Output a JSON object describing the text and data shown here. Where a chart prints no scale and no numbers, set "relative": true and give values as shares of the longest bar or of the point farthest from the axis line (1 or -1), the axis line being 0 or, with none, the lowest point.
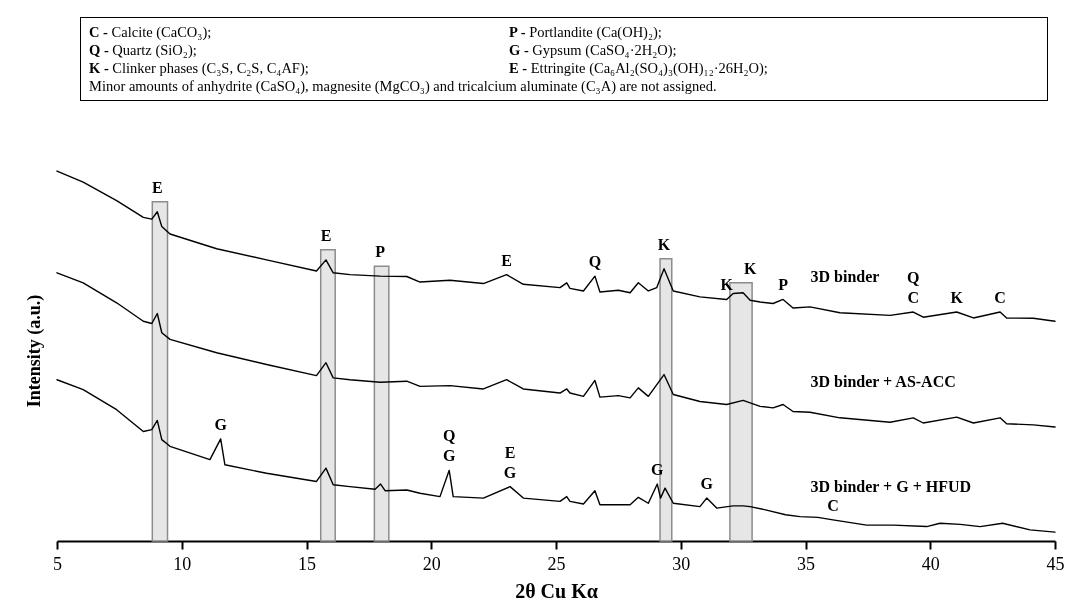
{
  "chart_data": {
    "type": "line",
    "relative": true,
    "xlabel": "2θ Cu Kα",
    "ylabel": "Intensity (a.u.)",
    "xlim": [
      5,
      45
    ],
    "xticks": [
      5,
      10,
      15,
      20,
      25,
      30,
      35,
      40,
      45
    ],
    "series": [
      {
        "name": "3D binder",
        "color": "#000000",
        "x": [
          5,
          6.05,
          7.39,
          8.46,
          8.8,
          9.02,
          9.2,
          9.53,
          11.4,
          13.4,
          15.4,
          15.78,
          16.07,
          16.74,
          17.95,
          19.02,
          19.55,
          20.75,
          22.09,
          23.02,
          23.69,
          25.16,
          25.43,
          25.56,
          26.1,
          26.56,
          26.76,
          27.5,
          27.97,
          28.3,
          28.7,
          29.04,
          29.33,
          29.7,
          30.77,
          31.84,
          32.1,
          32.5,
          32.78,
          33.18,
          33.7,
          34.1,
          34.5,
          35.18,
          36.38,
          38.39,
          39.32,
          39.72,
          41.06,
          41.73,
          42.8,
          43.06,
          44.13,
          45
        ],
        "values": [
          1.0,
          0.97,
          0.92,
          0.875,
          0.87,
          0.89,
          0.85,
          0.83,
          0.79,
          0.76,
          0.73,
          0.76,
          0.725,
          0.72,
          0.716,
          0.715,
          0.7,
          0.705,
          0.696,
          0.72,
          0.694,
          0.685,
          0.698,
          0.683,
          0.676,
          0.716,
          0.673,
          0.678,
          0.671,
          0.698,
          0.676,
          0.685,
          0.736,
          0.676,
          0.66,
          0.653,
          0.669,
          0.671,
          0.651,
          0.646,
          0.642,
          0.653,
          0.63,
          0.633,
          0.617,
          0.61,
          0.619,
          0.605,
          0.619,
          0.603,
          0.619,
          0.603,
          0.602,
          0.594
        ]
      },
      {
        "name": "3D binder + AS-ACC",
        "color": "#000000",
        "x": [
          5,
          6.05,
          7.39,
          8.46,
          8.8,
          9.02,
          9.2,
          9.53,
          11.4,
          13.4,
          15.4,
          15.78,
          16.07,
          16.74,
          17.95,
          19.02,
          19.55,
          20.75,
          22.09,
          23.02,
          23.69,
          25.16,
          25.43,
          25.56,
          26.1,
          26.56,
          26.76,
          27.5,
          27.97,
          28.3,
          28.7,
          29.33,
          29.7,
          30.77,
          31.84,
          32.5,
          33.18,
          33.7,
          34.1,
          34.5,
          35.18,
          36.38,
          38.39,
          39.32,
          39.72,
          41.06,
          41.73,
          42.8,
          43.06,
          44.13,
          45
        ],
        "values": [
          0.725,
          0.698,
          0.644,
          0.594,
          0.588,
          0.615,
          0.563,
          0.545,
          0.509,
          0.477,
          0.447,
          0.482,
          0.441,
          0.436,
          0.429,
          0.432,
          0.418,
          0.42,
          0.411,
          0.436,
          0.411,
          0.4,
          0.411,
          0.4,
          0.391,
          0.434,
          0.389,
          0.393,
          0.387,
          0.414,
          0.391,
          0.45,
          0.396,
          0.377,
          0.369,
          0.38,
          0.364,
          0.36,
          0.369,
          0.35,
          0.348,
          0.333,
          0.321,
          0.333,
          0.319,
          0.335,
          0.319,
          0.333,
          0.317,
          0.314,
          0.308
        ]
      },
      {
        "name": "3D binder + G + HFUD",
        "color": "#000000",
        "x": [
          5,
          6.05,
          7.39,
          8.46,
          8.8,
          9.02,
          9.2,
          9.53,
          11.13,
          11.56,
          11.73,
          13.4,
          15.4,
          15.78,
          16.07,
          16.74,
          17.75,
          17.97,
          18.15,
          19.02,
          19.55,
          20.35,
          20.72,
          20.88,
          22.09,
          23.16,
          23.69,
          25.16,
          25.43,
          25.56,
          26.1,
          26.56,
          26.76,
          27.97,
          28.3,
          28.7,
          29.06,
          29.19,
          29.37,
          29.7,
          30.77,
          31.04,
          31.44,
          32.1,
          32.5,
          32.78,
          33.4,
          34.2,
          34.78,
          35.5,
          36.1,
          37.45,
          38.52,
          39.86,
          40.39,
          41.2,
          42.0,
          42.9,
          44.0,
          45
        ],
        "values": [
          0.436,
          0.409,
          0.355,
          0.296,
          0.301,
          0.326,
          0.274,
          0.256,
          0.22,
          0.276,
          0.206,
          0.183,
          0.161,
          0.197,
          0.152,
          0.147,
          0.14,
          0.154,
          0.136,
          0.138,
          0.129,
          0.12,
          0.191,
          0.12,
          0.116,
          0.147,
          0.116,
          0.107,
          0.12,
          0.107,
          0.1,
          0.136,
          0.098,
          0.098,
          0.118,
          0.102,
          0.154,
          0.116,
          0.143,
          0.102,
          0.093,
          0.116,
          0.089,
          0.095,
          0.095,
          0.093,
          0.084,
          0.071,
          0.066,
          0.064,
          0.057,
          0.043,
          0.043,
          0.039,
          0.048,
          0.045,
          0.039,
          0.048,
          0.03,
          0.024
        ]
      }
    ],
    "bands": [
      {
        "axis": "x",
        "from": 8.82,
        "to": 9.43,
        "color": "#e6e6e6"
      },
      {
        "axis": "x",
        "from": 15.57,
        "to": 16.15,
        "color": "#e6e6e6"
      },
      {
        "axis": "x",
        "from": 17.72,
        "to": 18.3,
        "color": "#e6e6e6"
      },
      {
        "axis": "x",
        "from": 29.17,
        "to": 29.64,
        "color": "#e6e6e6"
      },
      {
        "axis": "x",
        "from": 31.97,
        "to": 32.86,
        "color": "#e6e6e6"
      }
    ],
    "annotations": [
      "C - Calcite (CaCO₃);",
      "P - Portlandite (Ca(OH)₂);",
      "Q - Quartz (SiO₂);",
      "G - Gypsum (CaSO₄·2H₂O);",
      "K - Clinker phases (C₃S, C₂S, C₄AF);",
      "E - Ettringite (Ca₆Al₂(SO₄)₃(OH)₁₂·26H₂O);",
      "Minor amounts of anhydrite (CaSO₄), magnesite (MgCO₃) and tricalcium aluminate (C₃A) are not assigned.",
      {
        "text": "E",
        "x": 9.02,
        "y": 0.89
      },
      {
        "text": "E",
        "x": 15.78,
        "y": 0.76
      },
      {
        "text": "P",
        "x": 17.95,
        "y": 0.716
      },
      {
        "text": "E",
        "x": 23.02,
        "y": 0.72
      },
      {
        "text": "Q",
        "x": 26.56,
        "y": 0.716
      },
      {
        "text": "K",
        "x": 29.33,
        "y": 0.736
      },
      {
        "text": "K",
        "x": 31.84,
        "y": 0.653
      },
      {
        "text": "K",
        "x": 32.78,
        "y": 0.651
      },
      {
        "text": "P",
        "x": 34.1,
        "y": 0.653
      },
      {
        "text": "Q",
        "x": 39.32,
        "y": 0.619
      },
      {
        "text": "C",
        "x": 39.32,
        "y": 0.619
      },
      {
        "text": "K",
        "x": 41.06,
        "y": 0.619
      },
      {
        "text": "C",
        "x": 42.8,
        "y": 0.619
      },
      {
        "text": "G",
        "x": 11.56,
        "y": 0.276
      },
      {
        "text": "Q",
        "x": 20.72,
        "y": 0.191
      },
      {
        "text": "G",
        "x": 20.72,
        "y": 0.191
      },
      {
        "text": "E",
        "x": 23.16,
        "y": 0.147
      },
      {
        "text": "G",
        "x": 23.16,
        "y": 0.147
      },
      {
        "text": "G",
        "x": 29.06,
        "y": 0.154
      },
      {
        "text": "G",
        "x": 31.04,
        "y": 0.116
      },
      {
        "text": "C",
        "x": 36.1,
        "y": 0.057
      }
    ]
  }
}
